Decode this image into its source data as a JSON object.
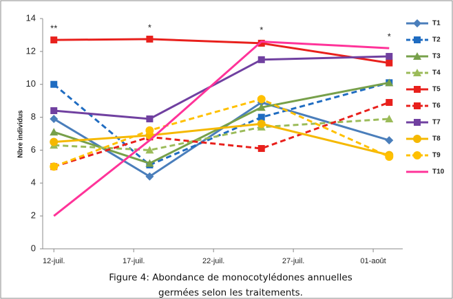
{
  "chart_data": {
    "type": "line",
    "caption": "Figure 4: Abondance de monocotylédones annuelles germées selon les traitements.",
    "ylabel": "Nbre individus",
    "x": [
      12,
      18,
      25,
      33
    ],
    "xlim": [
      11.3,
      33.85
    ],
    "xticks": [
      {
        "value": 12,
        "label": "12-juil."
      },
      {
        "value": 17,
        "label": "17-juil."
      },
      {
        "value": 22,
        "label": "22-juil."
      },
      {
        "value": 27,
        "label": "27-juil."
      },
      {
        "value": 32,
        "label": "01-août"
      }
    ],
    "ylim": [
      0,
      14
    ],
    "yticks": [
      0,
      2,
      4,
      6,
      8,
      10,
      12,
      14
    ],
    "legend": "right",
    "annotations": [
      {
        "text": "**",
        "x": 12
      },
      {
        "text": "*",
        "x": 18
      },
      {
        "text": "*",
        "x": 25
      },
      {
        "text": "*",
        "x": 33
      }
    ],
    "series": [
      {
        "name": "T1",
        "color": "#4a7ebb",
        "dash": false,
        "marker": "diamond",
        "values": [
          7.9,
          4.4,
          8.9,
          6.6
        ]
      },
      {
        "name": "T2",
        "color": "#1f6cc1",
        "dash": true,
        "marker": "square",
        "values": [
          10.0,
          5.1,
          8.0,
          10.1
        ]
      },
      {
        "name": "T3",
        "color": "#77a04a",
        "dash": false,
        "marker": "triangle",
        "values": [
          7.1,
          5.2,
          8.6,
          10.1
        ]
      },
      {
        "name": "T4",
        "color": "#9bbb59",
        "dash": true,
        "marker": "triangle",
        "values": [
          6.3,
          6.0,
          7.4,
          7.9
        ]
      },
      {
        "name": "T5",
        "color": "#e8201c",
        "dash": false,
        "marker": "square",
        "values": [
          12.7,
          12.75,
          12.5,
          11.3
        ]
      },
      {
        "name": "T6",
        "color": "#e8201c",
        "dash": true,
        "marker": "square",
        "values": [
          5.0,
          6.8,
          6.1,
          8.9
        ]
      },
      {
        "name": "T7",
        "color": "#7040a0",
        "dash": false,
        "marker": "square",
        "values": [
          8.4,
          7.9,
          11.5,
          11.7
        ]
      },
      {
        "name": "T8",
        "color": "#f5b800",
        "dash": false,
        "marker": "circle",
        "values": [
          6.5,
          6.9,
          7.6,
          5.7
        ]
      },
      {
        "name": "T9",
        "color": "#ffc000",
        "dash": true,
        "marker": "circle",
        "values": [
          5.0,
          7.2,
          9.1,
          5.6
        ]
      },
      {
        "name": "T10",
        "color": "#ff3399",
        "dash": false,
        "marker": "none",
        "values": [
          2.0,
          6.6,
          12.6,
          12.2
        ]
      }
    ]
  }
}
